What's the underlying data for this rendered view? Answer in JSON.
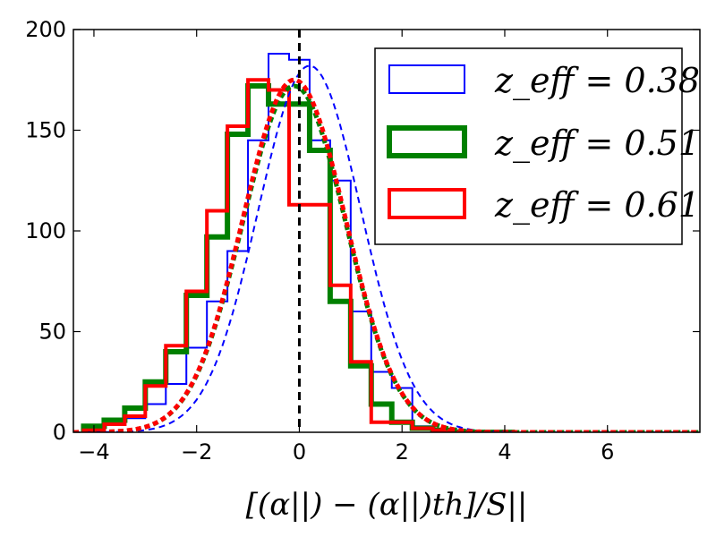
{
  "chart_data": {
    "type": "histogram",
    "xlabel": "[(α||) − (α||)th]/S||",
    "xlim": [
      -4.4,
      7.8
    ],
    "ylim": [
      0,
      200
    ],
    "xticks": [
      -4,
      -2,
      0,
      2,
      4,
      6
    ],
    "yticks": [
      0,
      50,
      100,
      150,
      200
    ],
    "vline_x": 0,
    "legend_position": "top-right",
    "bin_edges": [
      -4.2,
      -3.8,
      -3.4,
      -3.0,
      -2.6,
      -2.2,
      -1.8,
      -1.4,
      -1.0,
      -0.6,
      -0.2,
      0.2,
      0.6,
      1.0,
      1.4,
      1.8,
      2.2,
      2.6,
      3.0,
      3.4,
      3.8,
      4.2
    ],
    "series": [
      {
        "name": "z_eff = 0.38",
        "color": "#0000ff",
        "stroke_width": 2,
        "values": [
          1,
          4,
          7,
          14,
          24,
          42,
          65,
          90,
          145,
          188,
          185,
          145,
          125,
          60,
          30,
          22,
          3,
          1,
          1,
          0,
          0
        ],
        "gaussian": {
          "mean": 0.2,
          "sigma": 1.0,
          "peak": 182
        }
      },
      {
        "name": "z_eff = 0.51",
        "color": "#008000",
        "stroke_width": 6,
        "values": [
          3,
          6,
          12,
          25,
          40,
          68,
          97,
          148,
          172,
          163,
          163,
          140,
          65,
          33,
          14,
          5,
          2,
          1,
          0,
          0,
          0
        ],
        "gaussian": {
          "mean": -0.1,
          "sigma": 1.0,
          "peak": 172
        }
      },
      {
        "name": "z_eff = 0.61",
        "color": "#ff0000",
        "stroke_width": 4,
        "values": [
          1,
          4,
          8,
          23,
          43,
          70,
          110,
          152,
          175,
          170,
          113,
          113,
          73,
          35,
          5,
          5,
          2,
          1,
          0,
          0,
          0
        ],
        "gaussian": {
          "mean": -0.1,
          "sigma": 1.0,
          "peak": 175
        }
      }
    ]
  }
}
